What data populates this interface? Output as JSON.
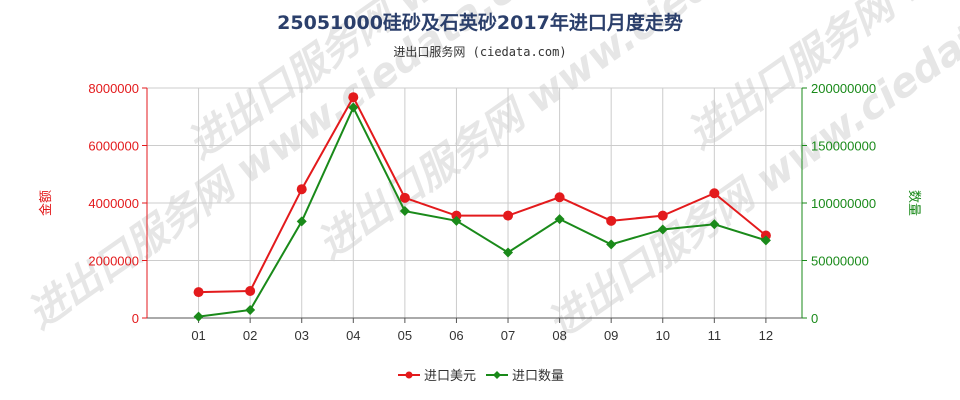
{
  "title": "25051000硅砂及石英砂2017年进口月度走势",
  "subtitle": "进出口服务网 (ciedata.com)",
  "watermark": "进出口服务网 www.ciedata.com",
  "colors": {
    "value": "#e31a1c",
    "quantity": "#1a8a1a",
    "grid": "#cccccc",
    "axis": "#555555"
  },
  "chart_data": {
    "type": "line",
    "categories": [
      "01",
      "02",
      "03",
      "04",
      "05",
      "06",
      "07",
      "08",
      "09",
      "10",
      "11",
      "12"
    ],
    "y_left": {
      "label": "金额",
      "ylim": [
        0,
        8000000
      ],
      "ticks": [
        "0",
        "2000000",
        "4000000",
        "6000000",
        "8000000"
      ]
    },
    "y_right": {
      "label": "数量",
      "ylim": [
        0,
        200000000
      ],
      "ticks": [
        "0",
        "50000000",
        "100000000",
        "150000000",
        "200000000"
      ]
    },
    "grid": true,
    "legend_position": "bottom-center",
    "series": [
      {
        "name": "进口美元",
        "axis": "left",
        "color": "#e31a1c",
        "marker": "circle",
        "values": [
          900000,
          940000,
          4480000,
          7680000,
          4180000,
          3560000,
          3560000,
          4200000,
          3380000,
          3560000,
          4340000,
          2870000
        ]
      },
      {
        "name": "进口数量",
        "axis": "right",
        "color": "#1a8a1a",
        "marker": "diamond",
        "values": [
          1200000,
          7000000,
          84000000,
          183000000,
          93000000,
          84500000,
          57000000,
          86000000,
          64000000,
          77000000,
          81500000,
          67500000
        ]
      }
    ]
  }
}
